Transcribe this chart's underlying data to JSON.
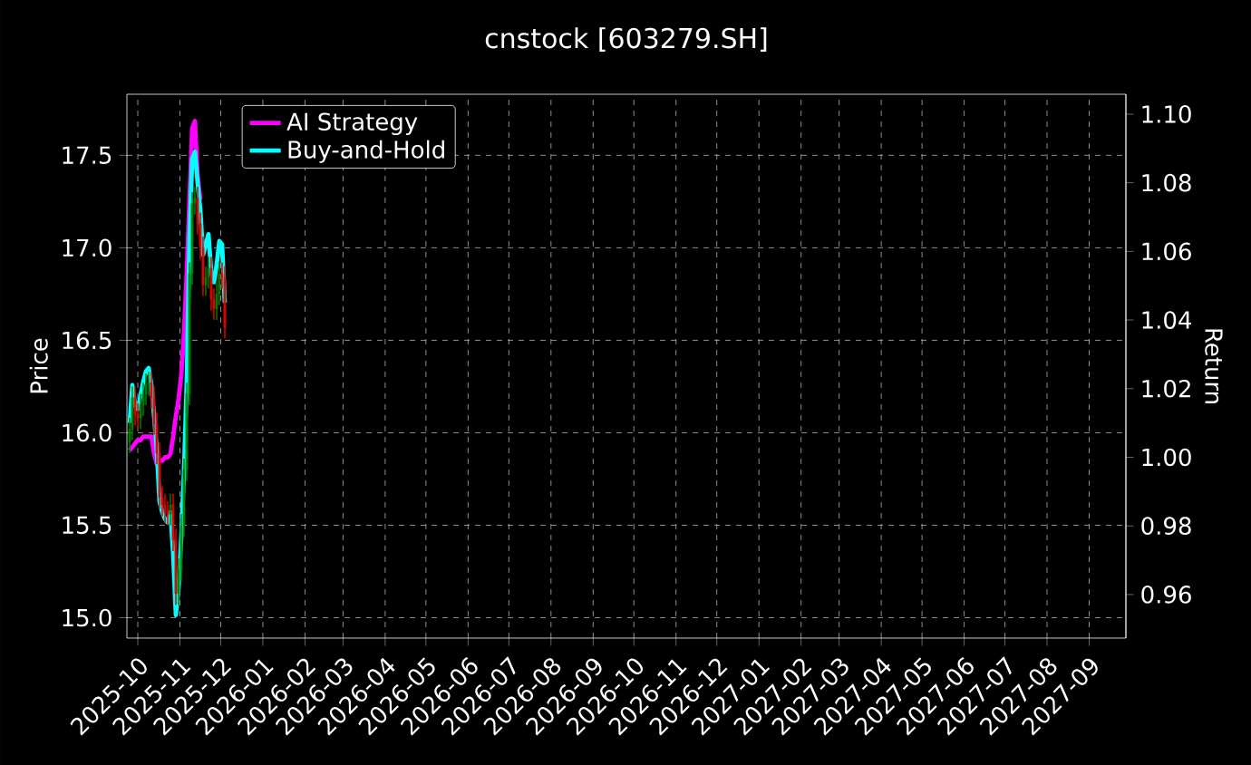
{
  "chart_data": {
    "type": "candlestick",
    "title": "cnstock [603279.SH]",
    "ylabel": "Price",
    "y2label": "Return",
    "x": [
      "2025-09-25",
      "2025-09-27",
      "2025-09-29",
      "2025-10-01",
      "2025-10-03",
      "2025-10-05",
      "2025-10-07",
      "2025-10-09",
      "2025-10-11",
      "2025-10-13",
      "2025-10-15",
      "2025-10-17",
      "2025-10-19",
      "2025-10-21",
      "2025-10-23",
      "2025-10-25",
      "2025-10-27",
      "2025-10-29",
      "2025-10-31",
      "2025-11-02",
      "2025-11-04",
      "2025-11-06",
      "2025-11-08",
      "2025-11-10",
      "2025-11-12",
      "2025-11-14",
      "2025-11-16",
      "2025-11-18",
      "2025-11-20",
      "2025-11-22",
      "2025-11-24",
      "2025-11-26",
      "2025-11-28",
      "2025-11-30",
      "2025-12-02",
      "2025-12-04"
    ],
    "ohlc": [
      [
        15.95,
        16.08,
        15.89,
        16.02
      ],
      [
        16.02,
        16.25,
        15.96,
        16.19
      ],
      [
        16.19,
        16.25,
        16.04,
        16.1
      ],
      [
        16.1,
        16.16,
        16.02,
        16.08
      ],
      [
        16.08,
        16.21,
        16.02,
        16.15
      ],
      [
        16.15,
        16.27,
        16.09,
        16.21
      ],
      [
        16.21,
        16.32,
        16.15,
        16.26
      ],
      [
        16.26,
        16.33,
        16.2,
        16.27
      ],
      [
        16.27,
        16.33,
        16.13,
        16.19
      ],
      [
        16.19,
        16.25,
        15.99,
        16.05
      ],
      [
        16.05,
        16.11,
        15.83,
        15.89
      ],
      [
        15.89,
        15.95,
        15.59,
        15.65
      ],
      [
        15.65,
        15.71,
        15.55,
        15.61
      ],
      [
        15.61,
        15.67,
        15.51,
        15.57
      ],
      [
        15.57,
        15.63,
        15.5,
        15.56
      ],
      [
        15.56,
        15.67,
        15.5,
        15.61
      ],
      [
        15.61,
        15.67,
        15.36,
        15.42
      ],
      [
        15.42,
        15.48,
        15.07,
        15.13
      ],
      [
        15.13,
        15.32,
        15.07,
        15.26
      ],
      [
        15.26,
        15.56,
        15.2,
        15.5
      ],
      [
        15.5,
        15.86,
        15.44,
        15.8
      ],
      [
        15.8,
        16.27,
        15.74,
        16.21
      ],
      [
        16.21,
        16.92,
        16.15,
        16.86
      ],
      [
        16.86,
        17.3,
        16.8,
        17.24
      ],
      [
        17.24,
        17.33,
        17.18,
        17.27
      ],
      [
        17.27,
        17.33,
        17.07,
        17.13
      ],
      [
        17.13,
        17.19,
        16.94,
        17.0
      ],
      [
        17.0,
        17.06,
        16.74,
        16.8
      ],
      [
        16.8,
        16.9,
        16.74,
        16.84
      ],
      [
        16.84,
        16.95,
        16.78,
        16.89
      ],
      [
        16.89,
        16.95,
        16.66,
        16.72
      ],
      [
        16.72,
        16.78,
        16.61,
        16.67
      ],
      [
        16.67,
        16.81,
        16.61,
        16.75
      ],
      [
        16.75,
        16.92,
        16.69,
        16.86
      ],
      [
        16.86,
        16.92,
        16.78,
        16.84
      ],
      [
        16.84,
        16.9,
        16.51,
        16.57
      ]
    ],
    "series": [
      {
        "name": "AI Strategy",
        "type": "line",
        "axis": "y2",
        "color": "#ff00ff",
        "values": [
          1.002,
          1.003,
          1.004,
          1.005,
          1.005,
          1.006,
          1.006,
          1.006,
          1.006,
          1.001,
          0.998,
          0.999,
          0.999,
          1.0,
          1.0,
          1.001,
          1.006,
          1.012,
          1.017,
          1.024,
          1.036,
          1.054,
          1.075,
          1.096,
          1.098,
          1.082,
          1.075,
          null,
          null,
          null,
          null,
          null,
          null,
          null,
          null,
          null
        ]
      },
      {
        "name": "Buy-and-Hold",
        "type": "line",
        "axis": "y2",
        "color": "#00ffff",
        "values": [
          1.01,
          1.021,
          1.015,
          1.014,
          1.018,
          1.022,
          1.025,
          1.026,
          1.021,
          1.012,
          1.002,
          0.987,
          0.984,
          0.982,
          0.981,
          0.984,
          0.972,
          0.954,
          0.962,
          0.977,
          0.996,
          1.022,
          1.063,
          1.087,
          1.089,
          1.08,
          1.072,
          1.059,
          1.062,
          1.065,
          1.054,
          1.051,
          1.056,
          1.063,
          1.062,
          1.045
        ]
      }
    ],
    "xlim": [
      "2025-09-23",
      "2027-09-28"
    ],
    "xticks": [
      "2025-10",
      "2025-11",
      "2025-12",
      "2026-01",
      "2026-02",
      "2026-03",
      "2026-04",
      "2026-05",
      "2026-06",
      "2026-07",
      "2026-08",
      "2026-09",
      "2026-10",
      "2026-11",
      "2026-12",
      "2027-01",
      "2027-02",
      "2027-03",
      "2027-04",
      "2027-05",
      "2027-06",
      "2027-07",
      "2027-08",
      "2027-09"
    ],
    "ylim": [
      14.89,
      17.83
    ],
    "yticks": [
      {
        "value": 15,
        "label": "15.0"
      },
      15.5,
      {
        "value": 16,
        "label": "16.0"
      },
      16.5,
      {
        "value": 17,
        "label": "17.0"
      },
      17.5
    ],
    "y2lim": [
      0.9473,
      1.1058
    ],
    "y2ticks": [
      0.96,
      0.98,
      {
        "value": 1,
        "label": "1.00"
      },
      1.02,
      1.04,
      1.06,
      1.08,
      {
        "value": 1.1,
        "label": "1.10"
      }
    ],
    "grid": true,
    "legend": "top left"
  }
}
